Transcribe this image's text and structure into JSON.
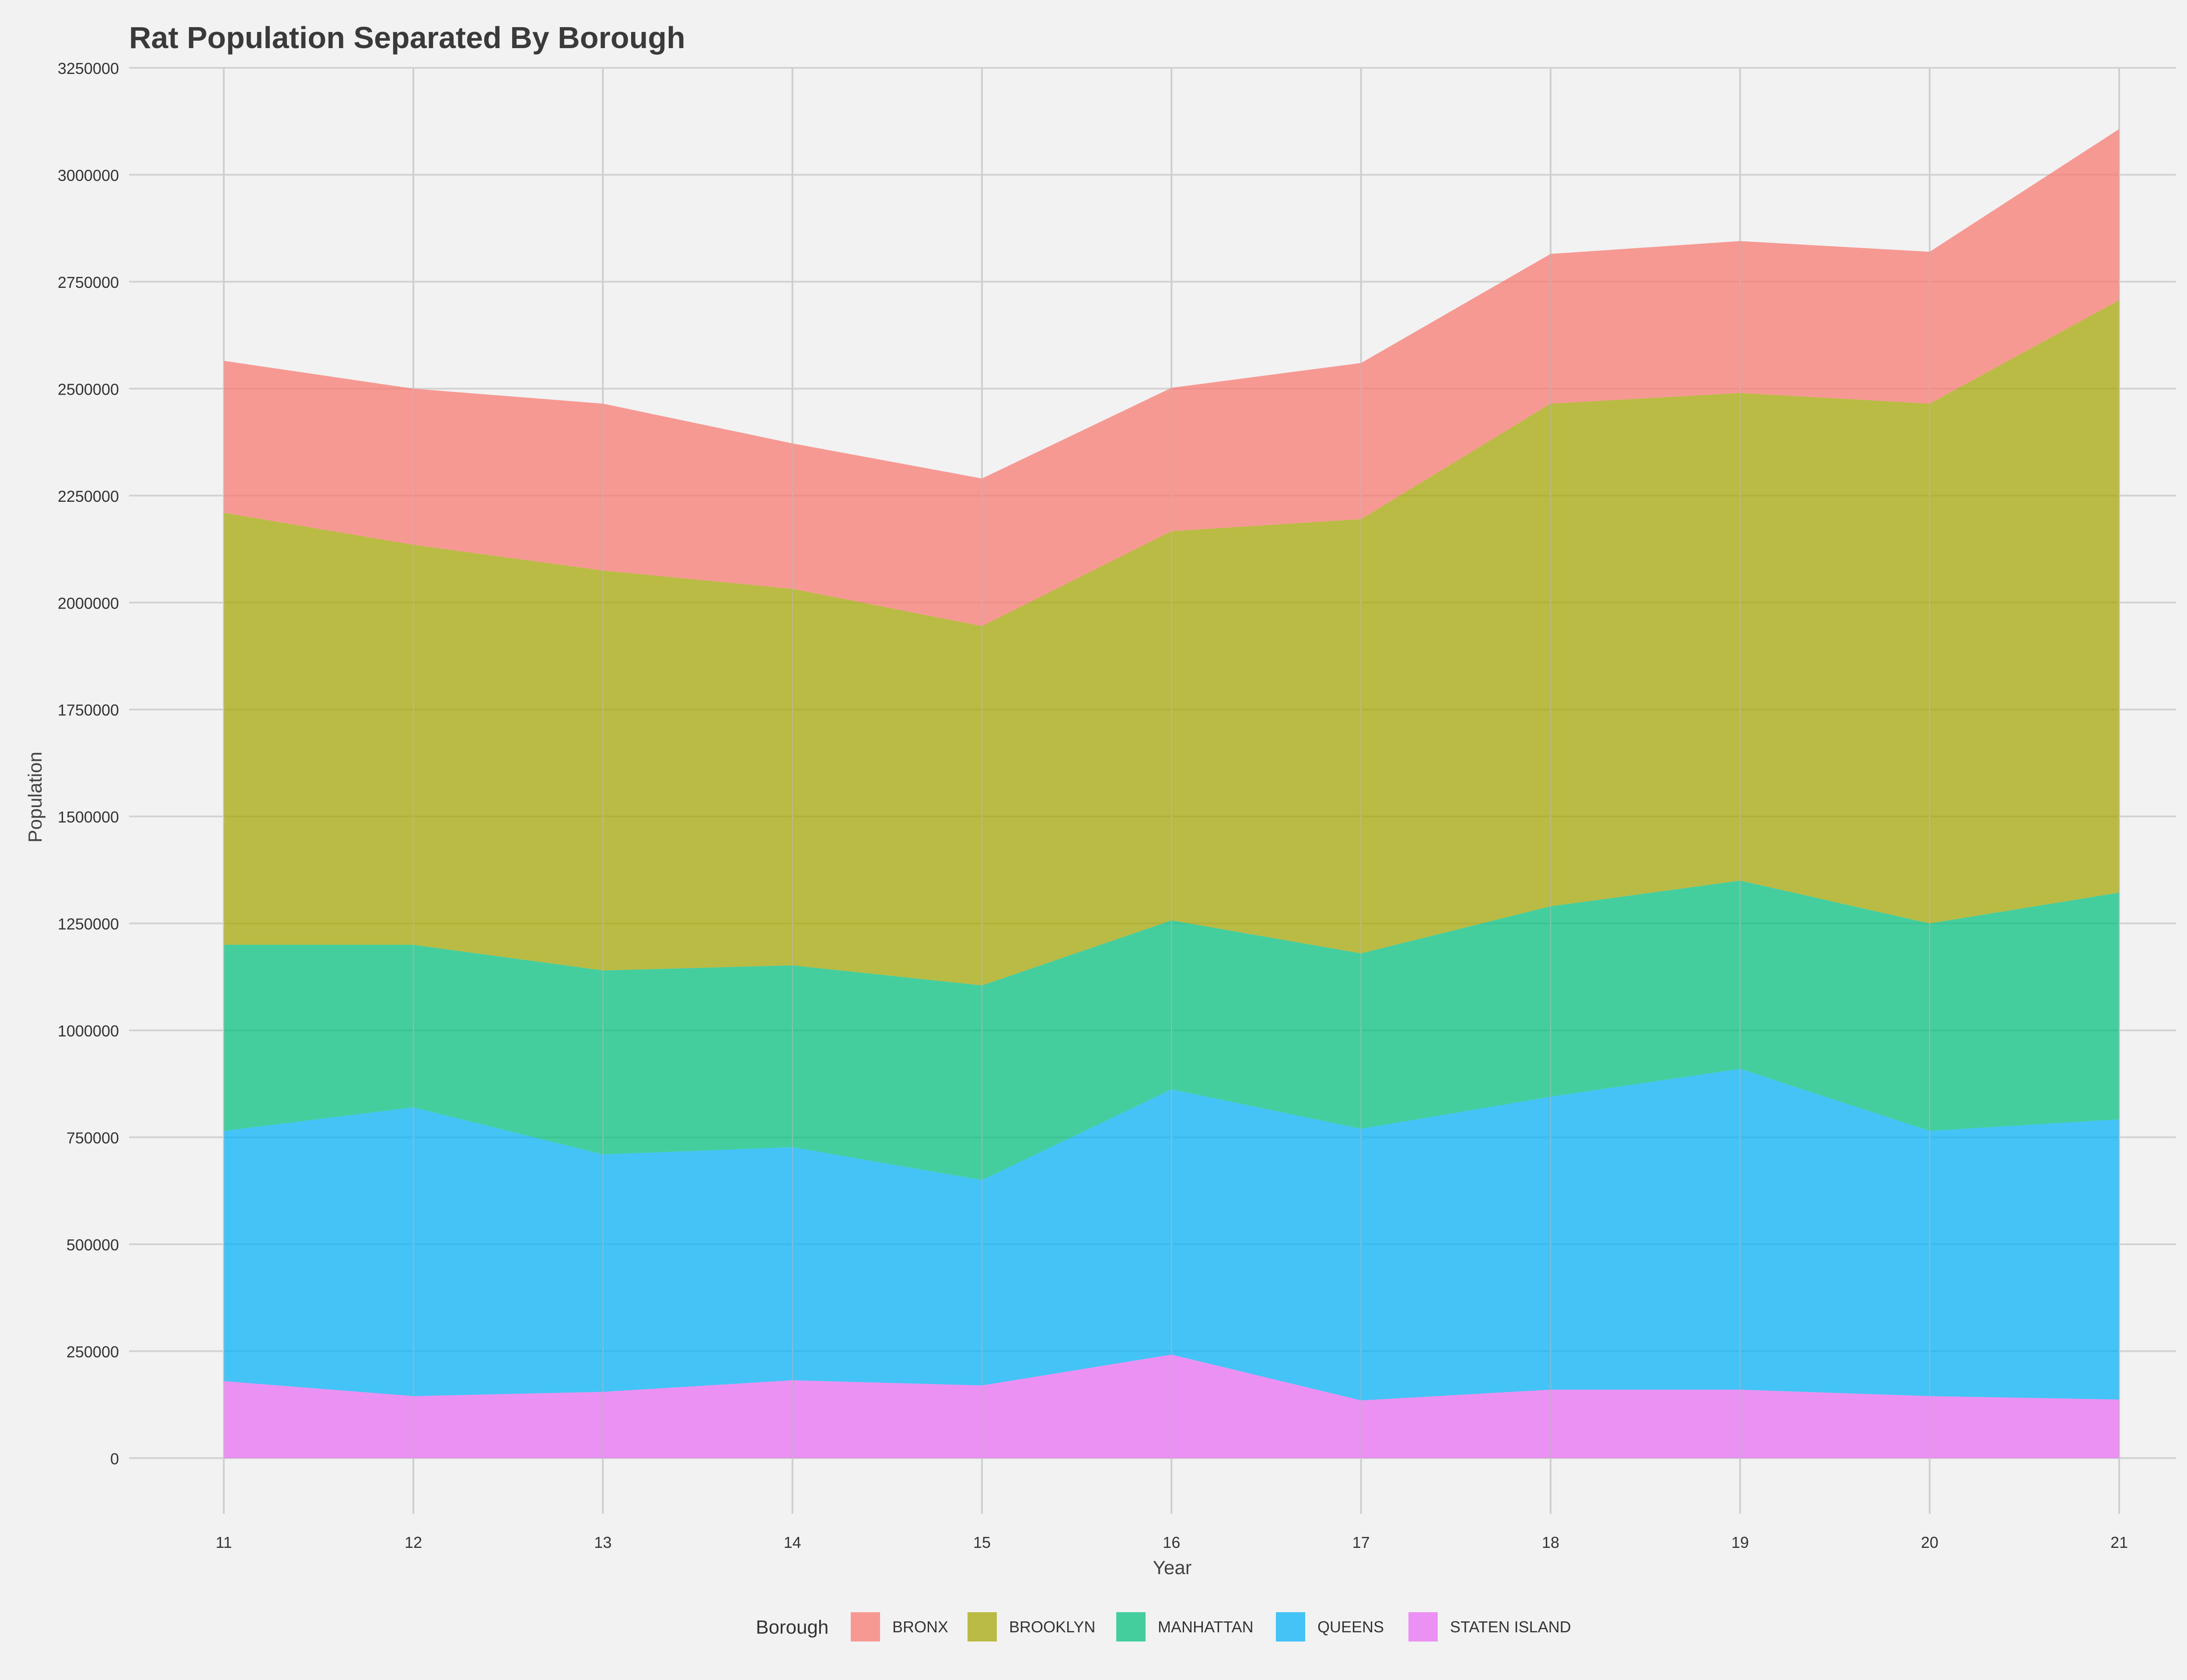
{
  "chart_data": {
    "type": "area",
    "stacked": true,
    "title": "Rat Population Separated By Borough",
    "xlabel": "Year",
    "ylabel": "Population",
    "x": [
      11,
      12,
      13,
      14,
      15,
      16,
      17,
      18,
      19,
      20,
      21
    ],
    "xlim": [
      10.5,
      21.3
    ],
    "ylim": [
      -130000,
      3250000
    ],
    "y_ticks": [
      0,
      250000,
      500000,
      750000,
      1000000,
      1250000,
      1500000,
      1750000,
      2000000,
      2250000,
      2500000,
      2750000,
      3000000,
      3250000
    ],
    "grid": true,
    "legend_position": "bottom",
    "legend_title": "Borough",
    "series": [
      {
        "name": "BRONX",
        "color": "#f8766d",
        "values": [
          355000,
          365000,
          390000,
          340000,
          345000,
          335000,
          365000,
          350000,
          355000,
          355000,
          400000
        ]
      },
      {
        "name": "BROOKLYN",
        "color": "#a3a500",
        "values": [
          1010000,
          935000,
          935000,
          880000,
          840000,
          910000,
          1015000,
          1175000,
          1140000,
          1215000,
          1385000
        ]
      },
      {
        "name": "MANHATTAN",
        "color": "#00bf7d",
        "values": [
          435000,
          380000,
          430000,
          425000,
          455000,
          395000,
          410000,
          445000,
          440000,
          485000,
          530000
        ]
      },
      {
        "name": "QUEENS",
        "color": "#00b0f6",
        "values": [
          585000,
          675000,
          555000,
          545000,
          480000,
          620000,
          635000,
          685000,
          750000,
          620000,
          655000
        ]
      },
      {
        "name": "STATEN ISLAND",
        "color": "#e76bf3",
        "values": [
          180000,
          145000,
          155000,
          182000,
          170000,
          242000,
          135000,
          160000,
          160000,
          145000,
          137000
        ]
      }
    ]
  }
}
